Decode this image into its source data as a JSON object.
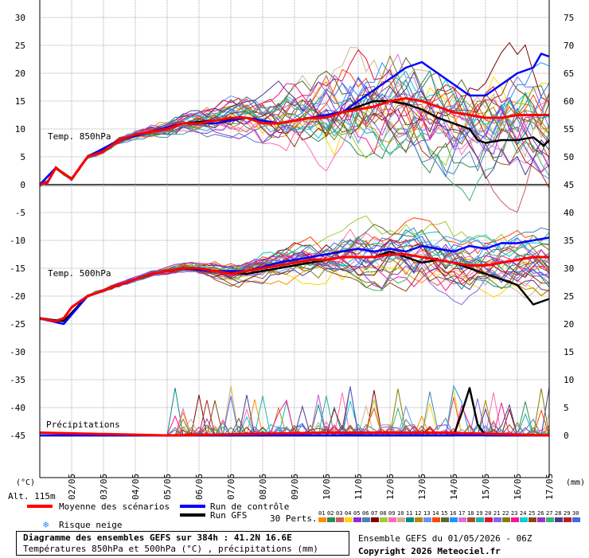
{
  "chart_data": {
    "type": "line",
    "left_axis_unit": "(°C)",
    "right_axis_unit": "(mm)",
    "altitude": "Alt. 115m",
    "left_ticks": [
      30,
      25,
      20,
      15,
      10,
      5,
      0,
      -5,
      -10,
      -15,
      -20,
      -25,
      -30,
      -35,
      -40,
      -45
    ],
    "right_ticks": [
      75,
      70,
      65,
      60,
      55,
      50,
      45,
      40,
      35,
      30,
      25,
      20,
      15,
      10,
      5,
      0
    ],
    "dates": [
      "02/05",
      "03/05",
      "04/05",
      "05/05",
      "06/05",
      "07/05",
      "08/05",
      "09/05",
      "10/05",
      "11/05",
      "12/05",
      "13/05",
      "14/05",
      "15/05",
      "16/05",
      "17/05"
    ],
    "panel_labels": {
      "t850": "Temp. 850hPa",
      "t500": "Temp. 500hPa",
      "precip": "Précipitations"
    },
    "x_range_hours": [
      0,
      384
    ],
    "series": [
      {
        "name": "Moyenne des scénarios",
        "color": "#ff0000",
        "t850": [
          [
            0,
            0
          ],
          [
            6,
            0.5
          ],
          [
            12,
            3
          ],
          [
            18,
            2
          ],
          [
            24,
            1
          ],
          [
            30,
            3
          ],
          [
            36,
            5
          ],
          [
            48,
            6
          ],
          [
            60,
            8
          ],
          [
            72,
            9
          ],
          [
            84,
            9.5
          ],
          [
            96,
            10
          ],
          [
            108,
            11
          ],
          [
            120,
            11
          ],
          [
            132,
            11.5
          ],
          [
            144,
            12
          ],
          [
            156,
            12
          ],
          [
            168,
            11
          ],
          [
            180,
            11
          ],
          [
            192,
            11.5
          ],
          [
            204,
            12
          ],
          [
            216,
            12
          ],
          [
            228,
            13
          ],
          [
            240,
            13.5
          ],
          [
            252,
            14
          ],
          [
            264,
            15
          ],
          [
            276,
            15.5
          ],
          [
            288,
            15
          ],
          [
            300,
            14
          ],
          [
            312,
            13
          ],
          [
            324,
            12.5
          ],
          [
            336,
            12
          ],
          [
            348,
            12
          ],
          [
            360,
            12.5
          ],
          [
            372,
            12.5
          ],
          [
            384,
            12.5
          ]
        ],
        "t500": [
          [
            0,
            -24
          ],
          [
            12,
            -24.5
          ],
          [
            18,
            -24
          ],
          [
            24,
            -22
          ],
          [
            36,
            -20
          ],
          [
            48,
            -19
          ],
          [
            60,
            -18
          ],
          [
            72,
            -17
          ],
          [
            84,
            -16
          ],
          [
            96,
            -15.5
          ],
          [
            108,
            -15
          ],
          [
            120,
            -15
          ],
          [
            132,
            -15.5
          ],
          [
            144,
            -16
          ],
          [
            156,
            -15.5
          ],
          [
            168,
            -15
          ],
          [
            180,
            -14.5
          ],
          [
            192,
            -14
          ],
          [
            204,
            -13.5
          ],
          [
            216,
            -13.5
          ],
          [
            228,
            -13
          ],
          [
            240,
            -13
          ],
          [
            252,
            -13
          ],
          [
            264,
            -12.5
          ],
          [
            276,
            -12.5
          ],
          [
            288,
            -13
          ],
          [
            300,
            -13.5
          ],
          [
            312,
            -14
          ],
          [
            324,
            -14.5
          ],
          [
            336,
            -14.5
          ],
          [
            348,
            -14
          ],
          [
            360,
            -13.5
          ],
          [
            372,
            -13
          ],
          [
            384,
            -13
          ]
        ],
        "precip": [
          [
            0,
            0.5
          ],
          [
            96,
            0
          ],
          [
            216,
            0.5
          ],
          [
            240,
            0.5
          ],
          [
            300,
            0.5
          ],
          [
            384,
            0
          ]
        ]
      },
      {
        "name": "Run de contrôle",
        "color": "#0000ff",
        "t850": [
          [
            0,
            0
          ],
          [
            12,
            3
          ],
          [
            24,
            1
          ],
          [
            36,
            5
          ],
          [
            60,
            8
          ],
          [
            84,
            9.5
          ],
          [
            108,
            11
          ],
          [
            132,
            11
          ],
          [
            156,
            12
          ],
          [
            180,
            11
          ],
          [
            204,
            12
          ],
          [
            228,
            13
          ],
          [
            240,
            15
          ],
          [
            252,
            17
          ],
          [
            264,
            19
          ],
          [
            276,
            21
          ],
          [
            288,
            22
          ],
          [
            300,
            20
          ],
          [
            312,
            18
          ],
          [
            324,
            16
          ],
          [
            336,
            16
          ],
          [
            348,
            18
          ],
          [
            360,
            20
          ],
          [
            372,
            21
          ],
          [
            378,
            23.5
          ],
          [
            384,
            23
          ]
        ],
        "t500": [
          [
            0,
            -24
          ],
          [
            18,
            -25
          ],
          [
            36,
            -20
          ],
          [
            60,
            -18
          ],
          [
            84,
            -16
          ],
          [
            108,
            -15
          ],
          [
            132,
            -15.5
          ],
          [
            156,
            -15.5
          ],
          [
            180,
            -14
          ],
          [
            204,
            -13
          ],
          [
            228,
            -12
          ],
          [
            240,
            -11.5
          ],
          [
            252,
            -12
          ],
          [
            264,
            -11.5
          ],
          [
            276,
            -12
          ],
          [
            288,
            -11
          ],
          [
            300,
            -11.5
          ],
          [
            312,
            -12
          ],
          [
            324,
            -11
          ],
          [
            336,
            -11.5
          ],
          [
            348,
            -10.5
          ],
          [
            360,
            -10.5
          ],
          [
            372,
            -10
          ],
          [
            384,
            -9.5
          ]
        ],
        "precip": [
          [
            0,
            0
          ],
          [
            384,
            0
          ]
        ]
      },
      {
        "name": "Run GFS",
        "color": "#000000",
        "t850": [
          [
            0,
            0
          ],
          [
            12,
            3
          ],
          [
            24,
            1
          ],
          [
            36,
            5
          ],
          [
            60,
            8
          ],
          [
            84,
            9.5
          ],
          [
            108,
            11
          ],
          [
            132,
            11.5
          ],
          [
            156,
            12
          ],
          [
            180,
            11
          ],
          [
            204,
            12
          ],
          [
            228,
            13
          ],
          [
            240,
            14
          ],
          [
            252,
            15
          ],
          [
            264,
            15
          ],
          [
            276,
            14.5
          ],
          [
            288,
            13.5
          ],
          [
            300,
            12
          ],
          [
            312,
            11
          ],
          [
            324,
            10
          ],
          [
            330,
            8
          ],
          [
            336,
            7.5
          ],
          [
            348,
            8
          ],
          [
            360,
            8
          ],
          [
            372,
            8.5
          ],
          [
            380,
            7
          ],
          [
            384,
            8
          ]
        ],
        "t500": [
          [
            0,
            -24
          ],
          [
            18,
            -24.5
          ],
          [
            36,
            -20
          ],
          [
            60,
            -18
          ],
          [
            84,
            -16
          ],
          [
            108,
            -15
          ],
          [
            132,
            -15.5
          ],
          [
            156,
            -16
          ],
          [
            180,
            -15
          ],
          [
            204,
            -14
          ],
          [
            228,
            -13
          ],
          [
            240,
            -13
          ],
          [
            252,
            -13
          ],
          [
            264,
            -12
          ],
          [
            276,
            -13
          ],
          [
            288,
            -14
          ],
          [
            300,
            -13.5
          ],
          [
            312,
            -14
          ],
          [
            324,
            -15
          ],
          [
            336,
            -16
          ],
          [
            348,
            -17
          ],
          [
            360,
            -18
          ],
          [
            372,
            -21.5
          ],
          [
            384,
            -20.5
          ]
        ],
        "precip": [
          [
            0,
            0
          ],
          [
            312,
            0
          ],
          [
            318,
            4
          ],
          [
            324,
            8.5
          ],
          [
            330,
            2
          ],
          [
            336,
            0
          ],
          [
            384,
            0
          ]
        ]
      }
    ],
    "perturbations_label": "30 Perts.",
    "perturbations": [
      {
        "id": "01",
        "color": "#ff8c00"
      },
      {
        "id": "02",
        "color": "#2e8b57"
      },
      {
        "id": "03",
        "color": "#cd5c5c"
      },
      {
        "id": "04",
        "color": "#ffd700"
      },
      {
        "id": "05",
        "color": "#8a2be2"
      },
      {
        "id": "06",
        "color": "#4682b4"
      },
      {
        "id": "07",
        "color": "#800000"
      },
      {
        "id": "08",
        "color": "#9acd32"
      },
      {
        "id": "09",
        "color": "#ff69b4"
      },
      {
        "id": "10",
        "color": "#d2b48c"
      },
      {
        "id": "11",
        "color": "#008b8b"
      },
      {
        "id": "12",
        "color": "#b8860b"
      },
      {
        "id": "13",
        "color": "#6495ed"
      },
      {
        "id": "14",
        "color": "#ff4500"
      },
      {
        "id": "15",
        "color": "#556b2f"
      },
      {
        "id": "16",
        "color": "#1e90ff"
      },
      {
        "id": "17",
        "color": "#da70d6"
      },
      {
        "id": "18",
        "color": "#a0522d"
      },
      {
        "id": "19",
        "color": "#20b2aa"
      },
      {
        "id": "20",
        "color": "#dc143c"
      },
      {
        "id": "21",
        "color": "#7b68ee"
      },
      {
        "id": "22",
        "color": "#808000"
      },
      {
        "id": "23",
        "color": "#ff1493"
      },
      {
        "id": "24",
        "color": "#00ced1"
      },
      {
        "id": "25",
        "color": "#8b4513"
      },
      {
        "id": "26",
        "color": "#9932cc"
      },
      {
        "id": "27",
        "color": "#3cb371"
      },
      {
        "id": "28",
        "color": "#483d8b"
      },
      {
        "id": "29",
        "color": "#b22222"
      },
      {
        "id": "30",
        "color": "#4169e1"
      }
    ]
  },
  "legend": {
    "mean": "Moyenne des scénarios",
    "control": "Run de contrôle",
    "gfs": "Run GFS",
    "snow": "Risque neige"
  },
  "title_box": {
    "line1": "Diagramme des ensembles GEFS sur 384h : 41.2N 16.6E",
    "line2": "Températures 850hPa et 500hPa (°C) , précipitations (mm)"
  },
  "info": {
    "run": "Ensemble GEFS du 01/05/2026 - 06Z",
    "copyright": "Copyright 2026 Meteociel.fr"
  },
  "colors": {
    "mean": "#ff0000",
    "control": "#0000ff",
    "gfs": "#000000",
    "grid": "#ababab",
    "zero": "#000000"
  }
}
